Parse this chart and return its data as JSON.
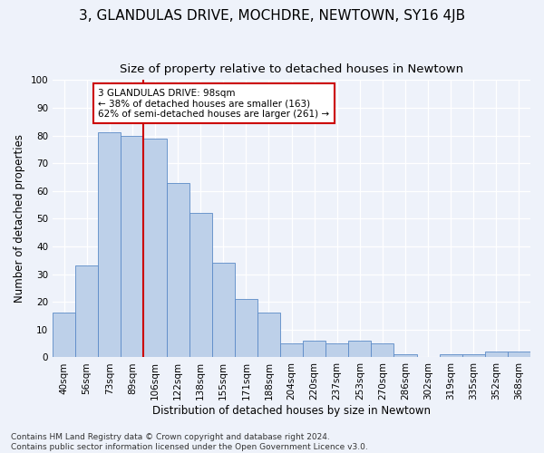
{
  "title": "3, GLANDULAS DRIVE, MOCHDRE, NEWTOWN, SY16 4JB",
  "subtitle": "Size of property relative to detached houses in Newtown",
  "xlabel": "Distribution of detached houses by size in Newtown",
  "ylabel": "Number of detached properties",
  "categories": [
    "40sqm",
    "56sqm",
    "73sqm",
    "89sqm",
    "106sqm",
    "122sqm",
    "138sqm",
    "155sqm",
    "171sqm",
    "188sqm",
    "204sqm",
    "220sqm",
    "237sqm",
    "253sqm",
    "270sqm",
    "286sqm",
    "302sqm",
    "319sqm",
    "335sqm",
    "352sqm",
    "368sqm"
  ],
  "values": [
    16,
    33,
    81,
    80,
    79,
    63,
    52,
    34,
    21,
    16,
    5,
    6,
    5,
    6,
    5,
    1,
    0,
    1,
    1,
    2,
    2
  ],
  "bar_color": "#bdd0e9",
  "bar_edge_color": "#5b8ac7",
  "vline_x": 3.5,
  "vline_color": "#cc0000",
  "annotation_text": "3 GLANDULAS DRIVE: 98sqm\n← 38% of detached houses are smaller (163)\n62% of semi-detached houses are larger (261) →",
  "annotation_box_color": "#ffffff",
  "annotation_box_edge": "#cc0000",
  "ylim": [
    0,
    100
  ],
  "yticks": [
    0,
    10,
    20,
    30,
    40,
    50,
    60,
    70,
    80,
    90,
    100
  ],
  "footer": "Contains HM Land Registry data © Crown copyright and database right 2024.\nContains public sector information licensed under the Open Government Licence v3.0.",
  "background_color": "#eef2fa",
  "grid_color": "#ffffff",
  "title_fontsize": 11,
  "subtitle_fontsize": 9.5,
  "label_fontsize": 8.5,
  "tick_fontsize": 7.5,
  "footer_fontsize": 6.5,
  "annotation_fontsize": 7.5
}
